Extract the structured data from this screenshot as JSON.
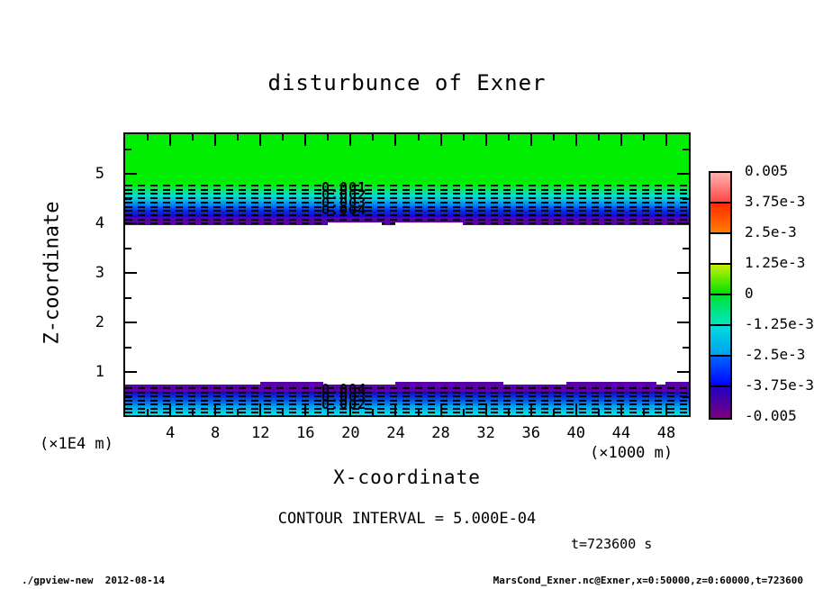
{
  "title": "disturbunce of Exner",
  "plot": {
    "x_axis": {
      "label": "X-coordinate",
      "unit_label": "(×1000 m)",
      "tick_labels": [
        4,
        8,
        12,
        16,
        20,
        24,
        28,
        32,
        36,
        40,
        44,
        48
      ],
      "range": [
        0,
        50
      ],
      "minor_tick_step": 2,
      "major_tick_step": 4
    },
    "z_axis": {
      "label": "Z-coordinate",
      "unit_label": "(×1E4 m)",
      "tick_labels": [
        1,
        2,
        3,
        4,
        5
      ],
      "range": [
        0,
        6
      ],
      "minor_tick_step": 0.5,
      "major_tick_step": 1
    },
    "contour_labels_upper": [
      "0.001",
      "0.002",
      "0.003",
      "0.004"
    ],
    "contour_labels_lower": [
      "0.004",
      "0.003",
      "0.002"
    ]
  },
  "colorbar": {
    "labels": [
      "0.005",
      "3.75e-3",
      "2.5e-3",
      "1.25e-3",
      "0",
      "-1.25e-3",
      "-2.5e-3",
      "-3.75e-3",
      "-0.005"
    ],
    "segments": [
      {
        "from": "#ffb2b2",
        "to": "#ff4545"
      },
      {
        "from": "#ff2b00",
        "to": "#ff7d00"
      },
      {
        "from": "#ff9900",
        "to": "#ededoo"
      },
      {
        "from": "#c8f000",
        "to": "#00e100"
      },
      {
        "from": "#00e132",
        "to": "#00e6c3"
      },
      {
        "from": "#00dcdc",
        "to": "#00a0f0"
      },
      {
        "from": "#0064ff",
        "to": "#0000ff"
      },
      {
        "from": "#2300c3",
        "to": "#7d007d"
      }
    ]
  },
  "annotations": {
    "contour_interval": "CONTOUR INTERVAL = 5.000E-04",
    "time_label": "t=723600 s"
  },
  "footer": {
    "left": "./gpview-new  2012-08-14",
    "right": "MarsCond_Exner.nc@Exner,x=0:50000,z=0:60000,t=723600"
  },
  "chart_data": {
    "type": "heatmap",
    "title": "disturbunce of Exner",
    "xlabel": "X-coordinate (×1000 m)",
    "ylabel": "Z-coordinate (×1E4 m)",
    "xlim": [
      0,
      50
    ],
    "ylim": [
      0,
      6
    ],
    "contour_interval": 0.0005,
    "colorbar_levels": [
      0.005,
      0.00375,
      0.0025,
      0.00125,
      0,
      -0.00125,
      -0.0025,
      -0.00375,
      -0.005
    ],
    "time_seconds": 723600,
    "legend_position": "right",
    "grid": false,
    "contour_style": "dashed (negative values)",
    "bands": [
      {
        "z_from": 4.85,
        "z_to": 5.85,
        "description": "near-zero value, solid green fill"
      },
      {
        "z_from": 4.2,
        "z_to": 4.85,
        "description": "negative anomaly layer, dashed contours labeled 0.001-0.004, gradient green to cyan to blue to dark blue"
      },
      {
        "z_from": 4.0,
        "z_to": 4.2,
        "description": "strongest negative, purple strip (~ -0.005)"
      },
      {
        "z_from": 0.78,
        "z_to": 4.0,
        "description": "white, value outside color range"
      },
      {
        "z_from": 0.65,
        "z_to": 0.78,
        "description": "strongest negative, purple strip (~ -0.005)"
      },
      {
        "z_from": 0.1,
        "z_to": 0.65,
        "description": "negative anomaly layer, dashed contours labeled 0.002-0.004, gradient dark blue to blue to cyan toward bottom"
      }
    ]
  }
}
